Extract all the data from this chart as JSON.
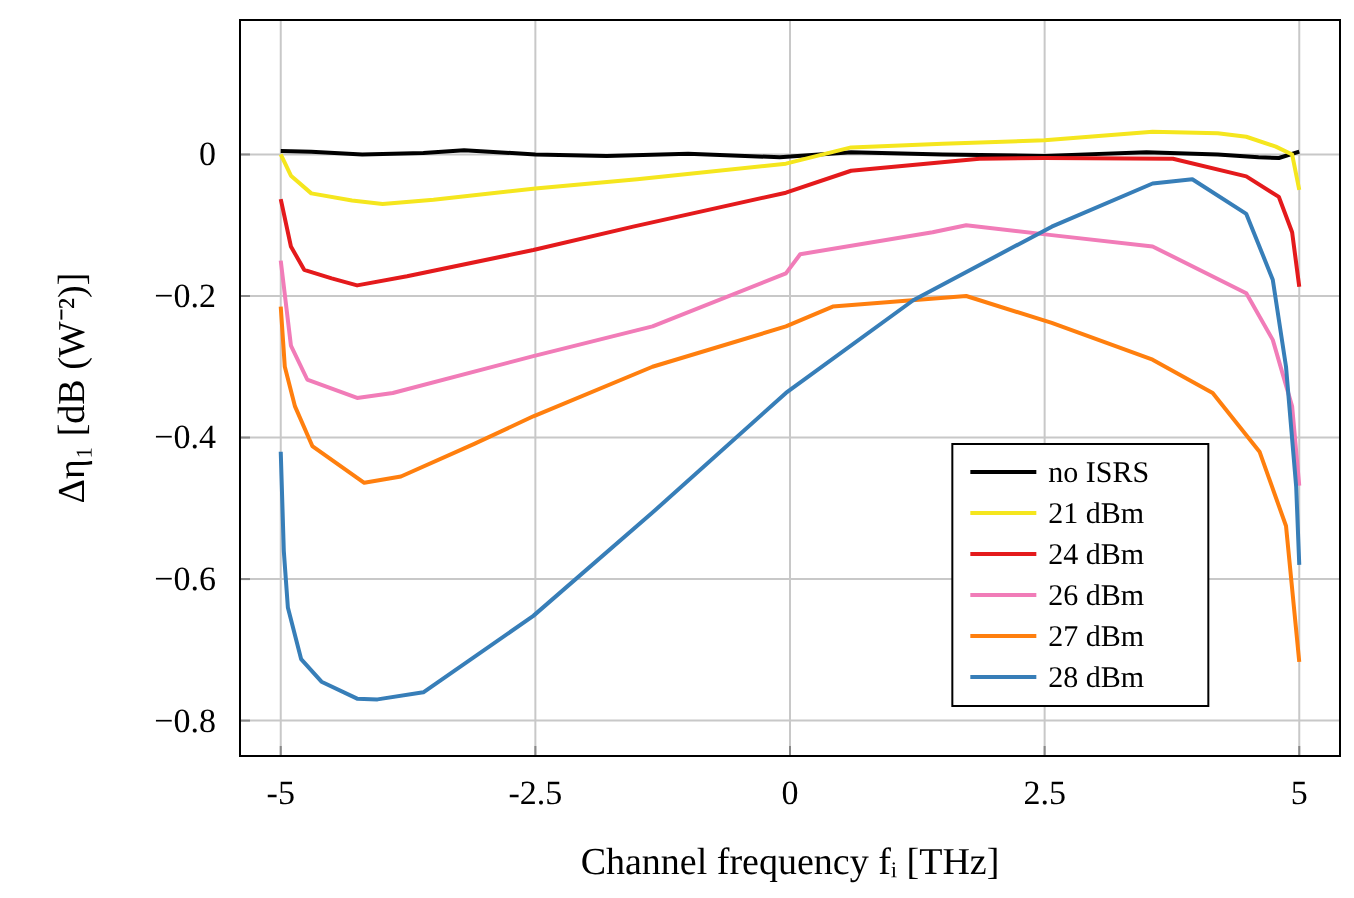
{
  "chart_data": {
    "type": "line",
    "xlabel": "Channel frequency fᵢ [THz]",
    "ylabel": "Δη₁ [dB (W⁻²)]",
    "xlim": [
      -5.4,
      5.4
    ],
    "ylim": [
      -0.85,
      0.19
    ],
    "xticks": [
      -5,
      -2.5,
      0,
      2.5,
      5
    ],
    "yticks": [
      {
        "value": 0,
        "label": "0"
      },
      {
        "value": -0.2,
        "label": "−0.2"
      },
      {
        "value": -0.4,
        "label": "−0.4"
      },
      {
        "value": -0.6,
        "label": "−0.6"
      },
      {
        "value": -0.8,
        "label": "−0.8"
      }
    ],
    "grid": true,
    "legend": "bottom right",
    "line_style": "solid",
    "marker": "none",
    "series": [
      {
        "name": "no ISRS",
        "color": "#000000",
        "x": [
          -5,
          -4.7,
          -4.2,
          -3.6,
          -3.2,
          -2.5,
          -1.8,
          -1,
          -0.1,
          0.6,
          1.5,
          2.5,
          3.5,
          4.2,
          4.6,
          4.8,
          5
        ],
        "values": [
          0.005,
          0.004,
          0,
          0.002,
          0.006,
          0,
          -0.002,
          0.001,
          -0.004,
          0.003,
          0,
          -0.002,
          0.003,
          0,
          -0.004,
          -0.005,
          0.004
        ]
      },
      {
        "name": "21 dBm",
        "color": "#f5e61e",
        "x": [
          -5,
          -4.9,
          -4.7,
          -4.3,
          -4,
          -3.5,
          -2.5,
          -1.5,
          -0.04,
          0.6,
          1.5,
          2.5,
          3.56,
          4.2,
          4.48,
          4.77,
          4.93,
          5
        ],
        "values": [
          0,
          -0.03,
          -0.055,
          -0.065,
          -0.07,
          -0.064,
          -0.048,
          -0.035,
          -0.013,
          0.01,
          0.015,
          0.02,
          0.032,
          0.03,
          0.025,
          0.011,
          0.0,
          -0.05
        ]
      },
      {
        "name": "24 dBm",
        "color": "#e41a1c",
        "x": [
          -5,
          -4.9,
          -4.77,
          -4.5,
          -4.25,
          -3.76,
          -2.52,
          -1.54,
          -0.04,
          0.6,
          1.86,
          2.5,
          3.76,
          4.48,
          4.8,
          4.93,
          5
        ],
        "values": [
          -0.063,
          -0.13,
          -0.163,
          -0.175,
          -0.185,
          -0.172,
          -0.135,
          -0.102,
          -0.054,
          -0.023,
          -0.006,
          -0.005,
          -0.006,
          -0.031,
          -0.06,
          -0.11,
          -0.187
        ]
      },
      {
        "name": "26 dBm",
        "color": "#f17cb8",
        "x": [
          -5,
          -4.9,
          -4.74,
          -4.25,
          -3.9,
          -2.52,
          -1.35,
          -0.04,
          0.1,
          1.4,
          1.73,
          2.57,
          3.56,
          4.48,
          4.74,
          4.93,
          5
        ],
        "values": [
          -0.15,
          -0.27,
          -0.318,
          -0.344,
          -0.337,
          -0.285,
          -0.243,
          -0.168,
          -0.141,
          -0.11,
          -0.1,
          -0.114,
          -0.13,
          -0.196,
          -0.262,
          -0.356,
          -0.468
        ]
      },
      {
        "name": "27 dBm",
        "color": "#ff7f0e",
        "x": [
          -5,
          -4.96,
          -4.86,
          -4.69,
          -4.18,
          -3.82,
          -3.1,
          -2.52,
          -1.35,
          -0.04,
          0.42,
          1.73,
          2.57,
          3.56,
          4.15,
          4.61,
          4.87,
          5
        ],
        "values": [
          -0.215,
          -0.3,
          -0.356,
          -0.412,
          -0.464,
          -0.455,
          -0.409,
          -0.37,
          -0.3,
          -0.243,
          -0.215,
          -0.2,
          -0.238,
          -0.29,
          -0.337,
          -0.42,
          -0.525,
          -0.717
        ]
      },
      {
        "name": "28 dBm",
        "color": "#377eb8",
        "x": [
          -5,
          -4.97,
          -4.93,
          -4.8,
          -4.6,
          -4.25,
          -4.05,
          -3.6,
          -2.52,
          -1.35,
          -0.04,
          1.21,
          2.57,
          3.56,
          3.95,
          4.48,
          4.74,
          4.87,
          4.97,
          5
        ],
        "values": [
          -0.42,
          -0.56,
          -0.64,
          -0.713,
          -0.745,
          -0.769,
          -0.77,
          -0.76,
          -0.652,
          -0.506,
          -0.337,
          -0.206,
          -0.102,
          -0.041,
          -0.035,
          -0.084,
          -0.177,
          -0.3,
          -0.47,
          -0.58
        ]
      }
    ]
  }
}
